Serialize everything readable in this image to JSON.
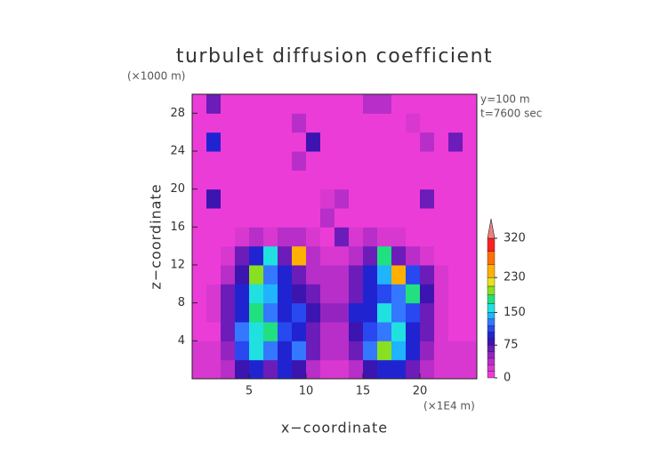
{
  "chart_data": {
    "type": "heatmap",
    "title": "turbulet diffusion coefficient",
    "y_unit": "(×1000 m)",
    "x_unit": "(×1E4 m)",
    "annotations": [
      "y=100 m",
      "t=7600 sec"
    ],
    "xlabel": "x−coordinate",
    "ylabel": "z−coordinate",
    "xlim": [
      0,
      25
    ],
    "ylim": [
      0,
      30
    ],
    "xticks": [
      5,
      10,
      15,
      20
    ],
    "yticks": [
      4,
      8,
      12,
      16,
      20,
      24,
      28
    ],
    "z": [
      [
        25,
        25,
        40,
        80,
        90,
        60,
        95,
        80,
        40,
        25,
        25,
        40,
        80,
        100,
        90,
        60,
        40,
        25,
        25,
        25
      ],
      [
        25,
        25,
        50,
        110,
        160,
        120,
        100,
        130,
        60,
        30,
        30,
        60,
        120,
        200,
        140,
        90,
        50,
        25,
        25,
        25
      ],
      [
        10,
        10,
        60,
        120,
        150,
        180,
        110,
        90,
        70,
        40,
        40,
        80,
        110,
        130,
        160,
        100,
        60,
        20,
        10,
        10
      ],
      [
        10,
        15,
        70,
        100,
        170,
        130,
        90,
        110,
        80,
        50,
        50,
        90,
        100,
        150,
        120,
        110,
        70,
        20,
        10,
        10
      ],
      [
        10,
        20,
        60,
        90,
        160,
        140,
        100,
        80,
        70,
        40,
        40,
        70,
        90,
        110,
        130,
        170,
        80,
        20,
        10,
        10
      ],
      [
        10,
        10,
        40,
        80,
        200,
        120,
        90,
        60,
        40,
        30,
        30,
        60,
        100,
        140,
        240,
        110,
        60,
        15,
        10,
        10
      ],
      [
        10,
        10,
        20,
        60,
        100,
        160,
        70,
        250,
        40,
        20,
        20,
        40,
        60,
        170,
        60,
        40,
        20,
        10,
        10,
        10
      ],
      [
        10,
        10,
        10,
        20,
        30,
        20,
        40,
        30,
        20,
        10,
        60,
        20,
        30,
        20,
        20,
        10,
        10,
        10,
        10,
        10
      ],
      [
        10,
        10,
        10,
        10,
        10,
        10,
        10,
        10,
        10,
        30,
        10,
        10,
        10,
        10,
        10,
        10,
        10,
        10,
        10,
        10
      ],
      [
        10,
        80,
        10,
        10,
        10,
        10,
        10,
        10,
        10,
        20,
        40,
        10,
        10,
        10,
        10,
        10,
        70,
        10,
        10,
        10
      ],
      [
        10,
        10,
        10,
        10,
        10,
        10,
        10,
        10,
        10,
        10,
        10,
        10,
        10,
        10,
        10,
        10,
        10,
        10,
        10,
        10
      ],
      [
        10,
        10,
        10,
        10,
        10,
        10,
        10,
        40,
        10,
        10,
        10,
        10,
        10,
        10,
        10,
        10,
        10,
        10,
        10,
        10
      ],
      [
        10,
        90,
        10,
        10,
        10,
        10,
        10,
        10,
        80,
        10,
        10,
        10,
        10,
        10,
        10,
        10,
        30,
        10,
        60,
        10
      ],
      [
        10,
        10,
        10,
        10,
        10,
        10,
        10,
        30,
        10,
        10,
        10,
        10,
        10,
        10,
        10,
        20,
        10,
        10,
        10,
        10
      ],
      [
        10,
        60,
        10,
        10,
        10,
        10,
        10,
        10,
        10,
        10,
        10,
        10,
        30,
        40,
        10,
        10,
        10,
        10,
        10,
        10
      ]
    ],
    "colorbar": {
      "lim": [
        0,
        320
      ],
      "ticks": [
        0,
        75,
        150,
        230,
        320
      ],
      "levels": [
        0,
        15,
        30,
        45,
        60,
        75,
        90,
        105,
        120,
        135,
        150,
        170,
        190,
        210,
        230,
        260,
        290,
        320
      ],
      "colors": [
        "#ec3cd8",
        "#d838d0",
        "#b82ec8",
        "#9424c0",
        "#6c1cb8",
        "#3c14b0",
        "#2024d0",
        "#2848f0",
        "#3478ff",
        "#20b4ff",
        "#20e0e0",
        "#20e080",
        "#88e020",
        "#e8e020",
        "#ffb000",
        "#ff7000",
        "#ff2020"
      ],
      "extend_color": "#f08080"
    }
  }
}
